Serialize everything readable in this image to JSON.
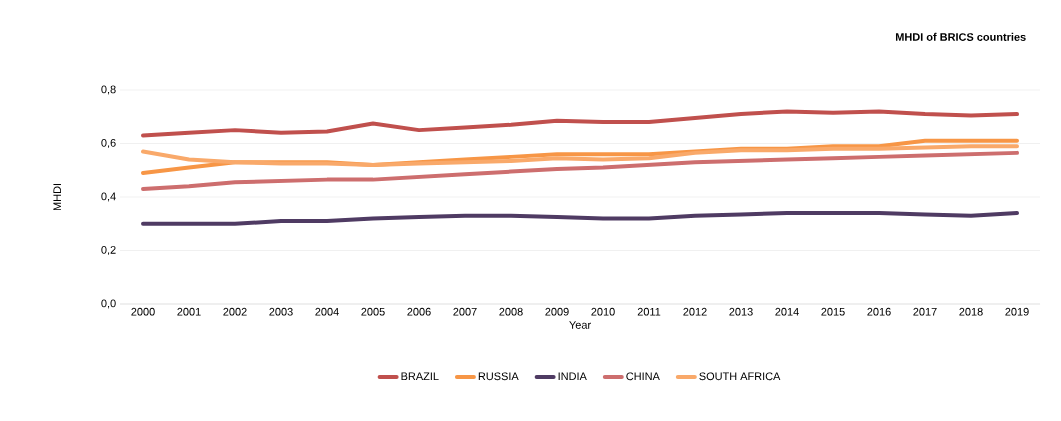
{
  "chart_data": {
    "type": "line",
    "title": "MHDI of BRICS countries",
    "xlabel": "Year",
    "ylabel": "MHDI",
    "categories": [
      "2000",
      "2001",
      "2002",
      "2003",
      "2004",
      "2005",
      "2006",
      "2007",
      "2008",
      "2009",
      "2010",
      "2011",
      "2012",
      "2013",
      "2014",
      "2015",
      "2016",
      "2017",
      "2018",
      "2019"
    ],
    "series": [
      {
        "name": "BRAZIL",
        "color": "#c0504d",
        "values": [
          0.63,
          0.64,
          0.65,
          0.64,
          0.645,
          0.675,
          0.65,
          0.66,
          0.67,
          0.685,
          0.68,
          0.68,
          0.695,
          0.71,
          0.72,
          0.715,
          0.72,
          0.71,
          0.705,
          0.71
        ]
      },
      {
        "name": "RUSSIA",
        "color": "#f79646",
        "values": [
          0.49,
          0.51,
          0.53,
          0.53,
          0.53,
          0.52,
          0.53,
          0.54,
          0.55,
          0.56,
          0.56,
          0.56,
          0.57,
          0.58,
          0.58,
          0.59,
          0.59,
          0.61,
          0.61,
          0.61
        ]
      },
      {
        "name": "INDIA",
        "color": "#4f3b63",
        "values": [
          0.3,
          0.3,
          0.3,
          0.31,
          0.31,
          0.32,
          0.325,
          0.33,
          0.33,
          0.325,
          0.32,
          0.32,
          0.33,
          0.335,
          0.34,
          0.34,
          0.34,
          0.335,
          0.33,
          0.34
        ]
      },
      {
        "name": "CHINA",
        "color": "#cd6e6e",
        "values": [
          0.43,
          0.44,
          0.455,
          0.46,
          0.465,
          0.465,
          0.475,
          0.485,
          0.495,
          0.505,
          0.51,
          0.52,
          0.53,
          0.535,
          0.54,
          0.545,
          0.55,
          0.555,
          0.56,
          0.565
        ]
      },
      {
        "name": "SOUTH AFRICA",
        "color": "#f9a96a",
        "values": [
          0.57,
          0.54,
          0.53,
          0.525,
          0.525,
          0.52,
          0.525,
          0.53,
          0.535,
          0.545,
          0.54,
          0.545,
          0.565,
          0.575,
          0.575,
          0.58,
          0.58,
          0.585,
          0.59,
          0.59
        ]
      }
    ],
    "ylim": [
      0,
      0.8
    ],
    "yticks": [
      {
        "value": 0,
        "label": "0,0"
      },
      {
        "value": 0.2,
        "label": "0,2"
      },
      {
        "value": 0.4,
        "label": "0,4"
      },
      {
        "value": 0.6,
        "label": "0,6"
      },
      {
        "value": 0.8,
        "label": "0,8"
      }
    ],
    "grid": "y",
    "legend": "bottom",
    "marker": "none",
    "line_style": "solid"
  }
}
